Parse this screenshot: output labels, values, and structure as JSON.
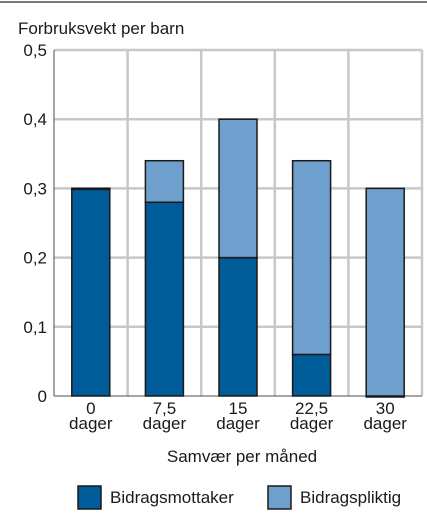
{
  "chart_data": {
    "type": "bar",
    "stacked": true,
    "title": "",
    "ylabel": "Forbruksvekt per barn",
    "xlabel": "Samvær per måned",
    "categories": [
      [
        "0",
        "dager"
      ],
      [
        "7,5",
        "dager"
      ],
      [
        "15",
        "dager"
      ],
      [
        "22,5",
        "dager"
      ],
      [
        "30",
        "dager"
      ]
    ],
    "series": [
      {
        "name": "Bidragsmottaker",
        "color": "#005b99",
        "values": [
          0.3,
          0.28,
          0.2,
          0.06,
          0.0
        ]
      },
      {
        "name": "Bidragspliktig",
        "color": "#6f9fcc",
        "values": [
          0.0,
          0.06,
          0.2,
          0.28,
          0.3
        ]
      }
    ],
    "ylim": [
      0,
      0.5
    ],
    "yticks": [
      0,
      0.1,
      0.2,
      0.3,
      0.4,
      0.5
    ],
    "ytick_labels": [
      "0",
      "0,1",
      "0,2",
      "0,3",
      "0,4",
      "0,5"
    ],
    "grid": true,
    "legend_position": "bottom"
  }
}
